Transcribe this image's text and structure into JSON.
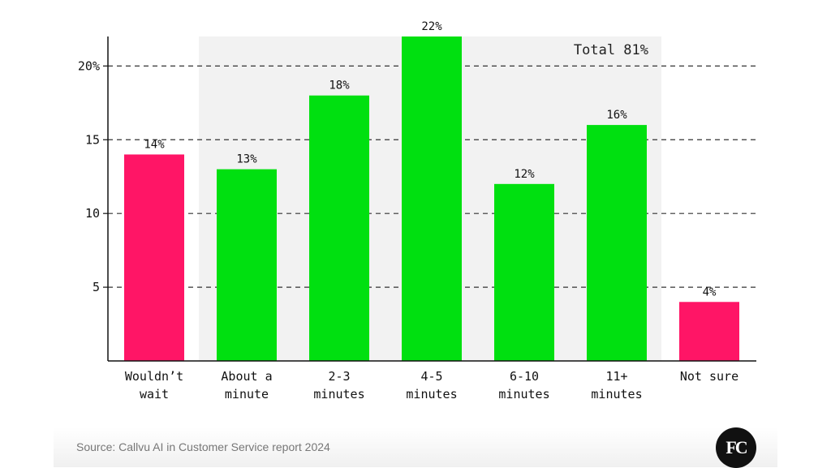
{
  "chart_data": {
    "type": "bar",
    "categories": [
      [
        "Wouldn’t",
        "wait"
      ],
      [
        "About a",
        "minute"
      ],
      [
        "2-3",
        "minutes"
      ],
      [
        "4-5",
        "minutes"
      ],
      [
        "6-10",
        "minutes"
      ],
      [
        "11+",
        "minutes"
      ],
      [
        "Not sure"
      ]
    ],
    "values": [
      14,
      13,
      18,
      22,
      12,
      16,
      4
    ],
    "data_labels": [
      "14%",
      "13%",
      "18%",
      "22%",
      "12%",
      "16%",
      "4%"
    ],
    "bar_colors": [
      "#ff1566",
      "#00e010",
      "#00e010",
      "#00e010",
      "#00e010",
      "#00e010",
      "#ff1566"
    ],
    "ylim": [
      0,
      22
    ],
    "y_ticks": [
      5,
      10,
      15,
      20
    ],
    "y_tick_labels": [
      "5",
      "10",
      "15",
      "20%"
    ],
    "grid": "horizontal dashed",
    "highlight": {
      "categories_from": 1,
      "categories_to": 5,
      "label": "Total 81%",
      "color": "#f2f2f2"
    }
  },
  "footer": {
    "source": "Source: Callvu AI in Customer Service report 2024",
    "logo_text": "FC"
  }
}
